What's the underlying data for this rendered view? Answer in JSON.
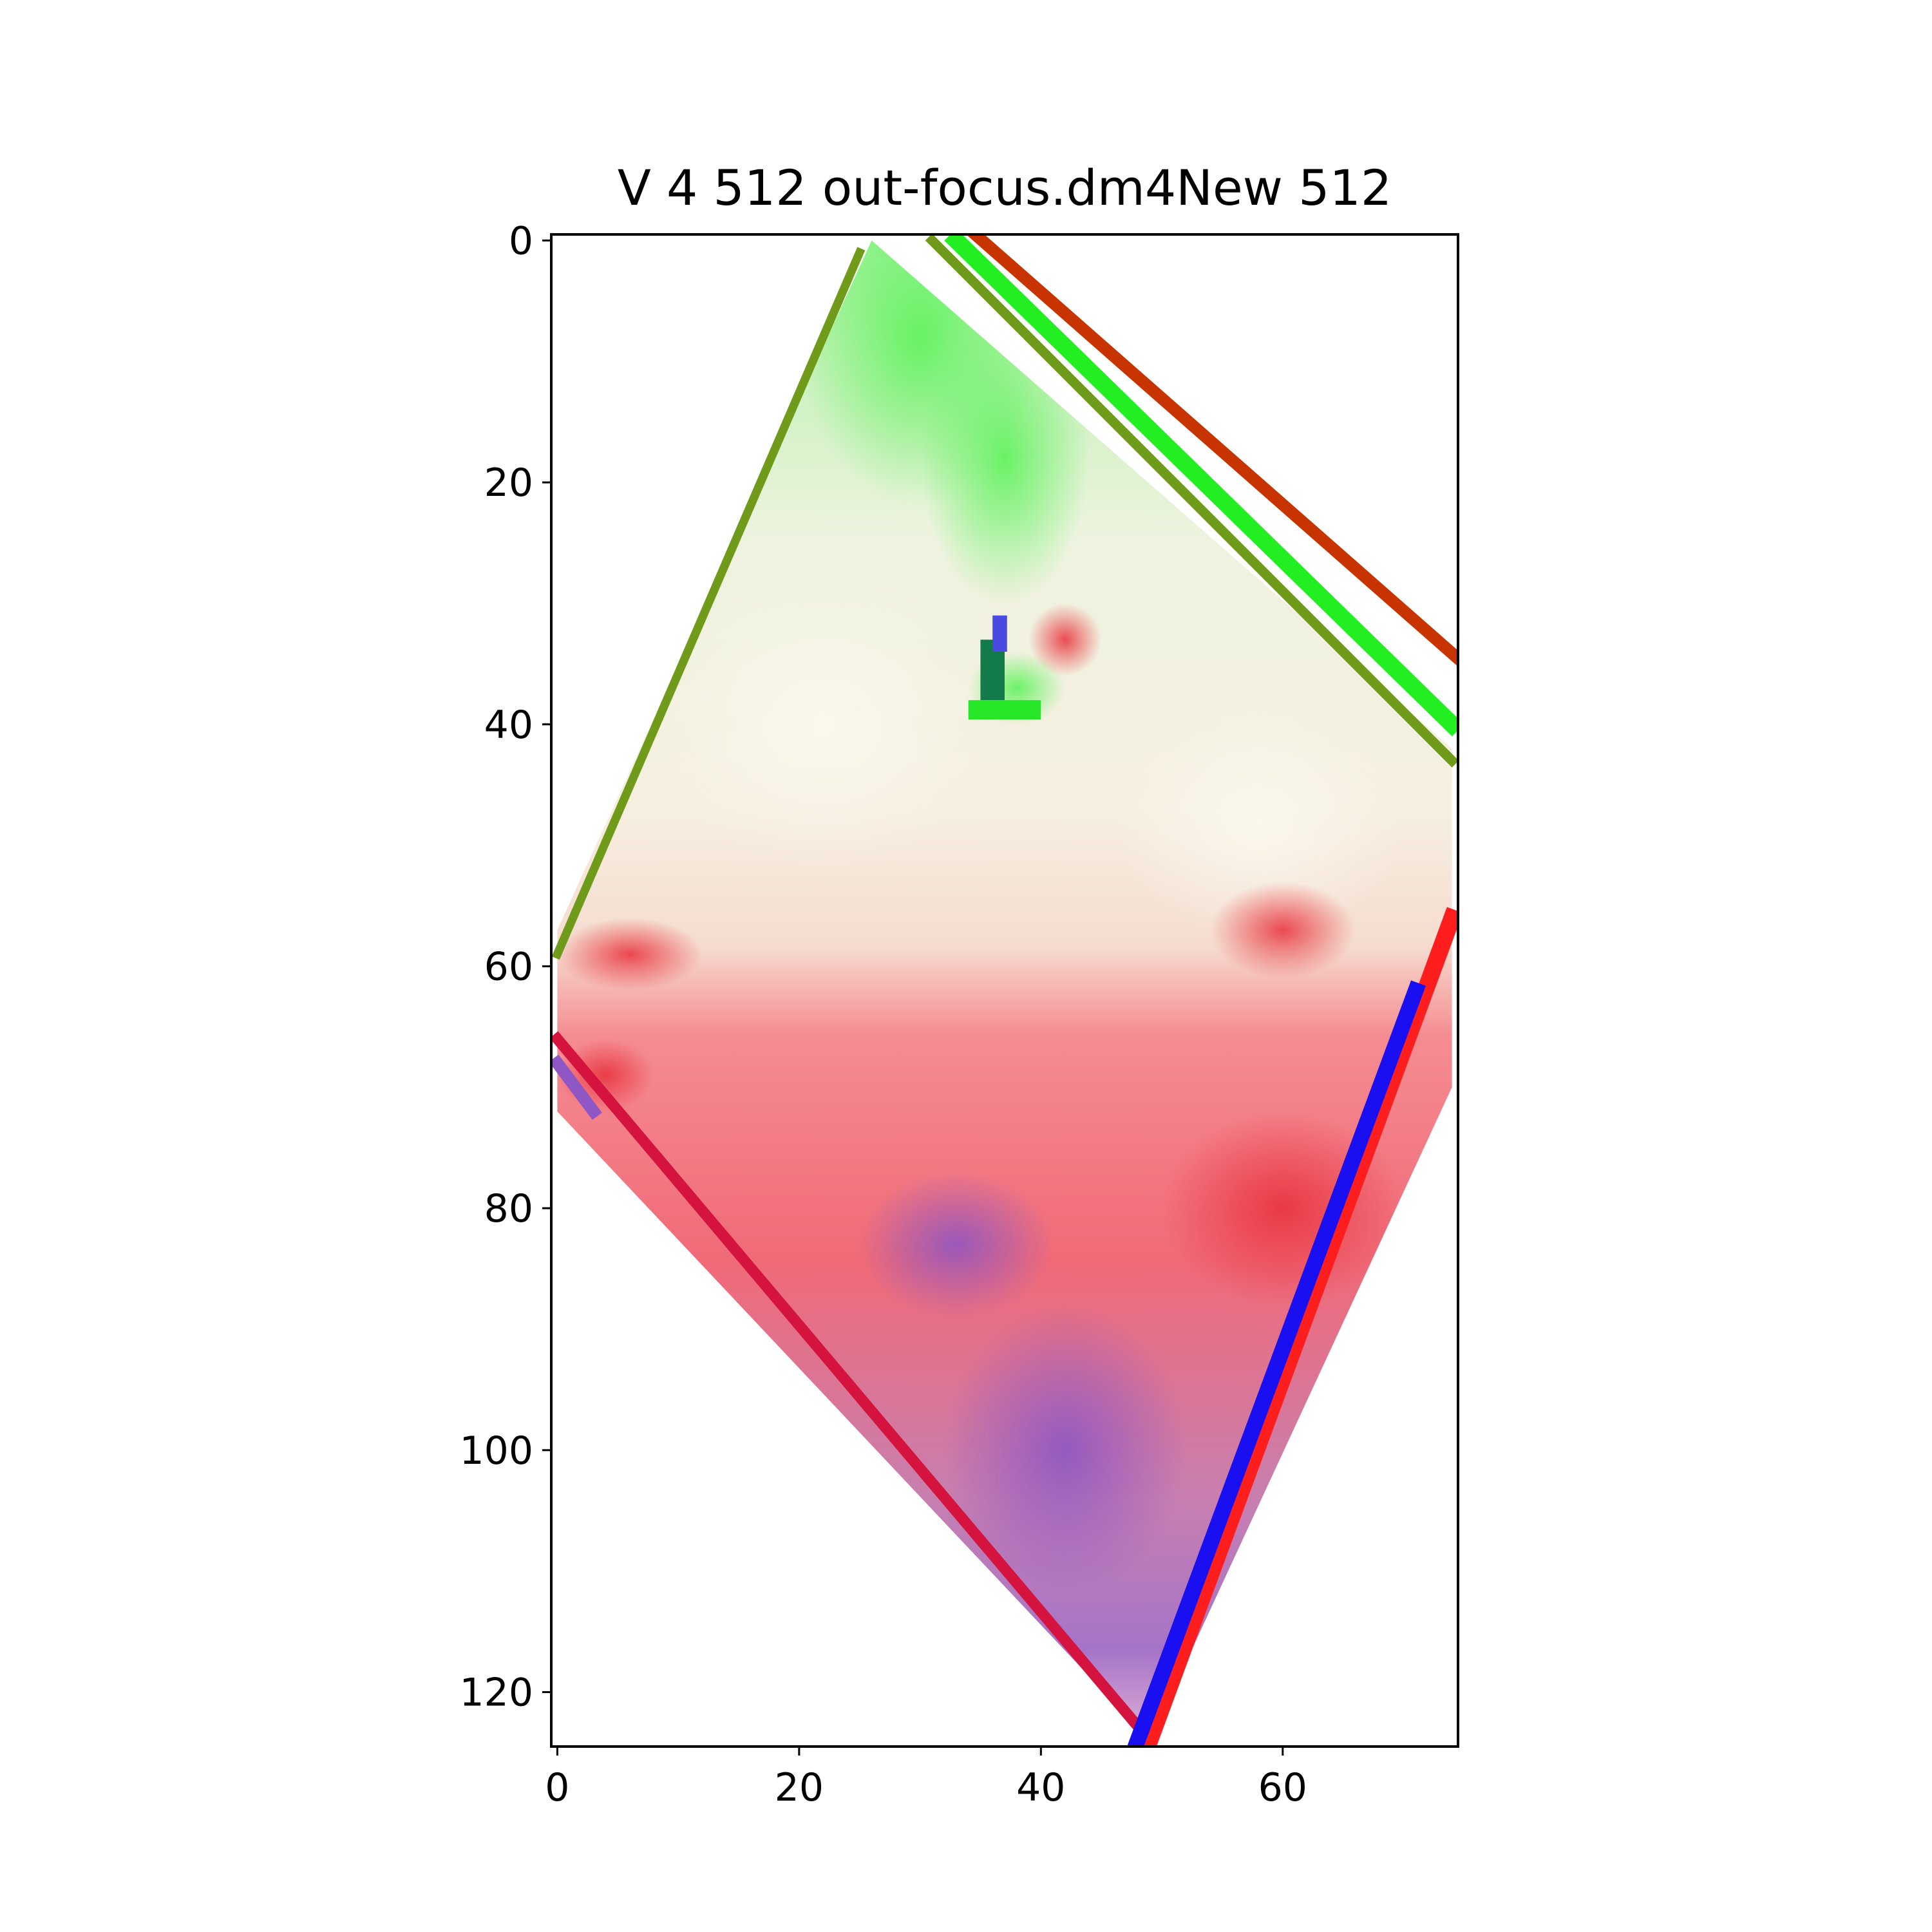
{
  "chart_data": {
    "type": "heatmap",
    "title": "V 4 512 out-focus.dm4New 512",
    "xlabel": "",
    "ylabel": "",
    "image_extent": {
      "x": [
        -0.5,
        74.5
      ],
      "y": [
        124.5,
        -0.5
      ]
    },
    "x_ticks": [
      0,
      20,
      40,
      60
    ],
    "y_ticks": [
      0,
      20,
      40,
      60,
      80,
      100,
      120
    ],
    "grid": false,
    "legend": "none",
    "colormap_note": "RGB composite",
    "colors": {
      "green": "#22ee22",
      "dark_green": "#6f9a1a",
      "light_green": "#ccf2bf",
      "cream": "#f7f1e2",
      "red": "#ff1e1e",
      "pink": "#f27d86",
      "crimson": "#d4133e",
      "purple": "#8e57c4",
      "blue": "#1a0ff0",
      "dark_red": "#c83400"
    },
    "shape_vertices": [
      {
        "x": 26,
        "y": 0
      },
      {
        "x": 74,
        "y": 42
      },
      {
        "x": 74,
        "y": 70
      },
      {
        "x": 49,
        "y": 124
      },
      {
        "x": 0,
        "y": 72
      },
      {
        "x": 0,
        "y": 57
      }
    ]
  }
}
